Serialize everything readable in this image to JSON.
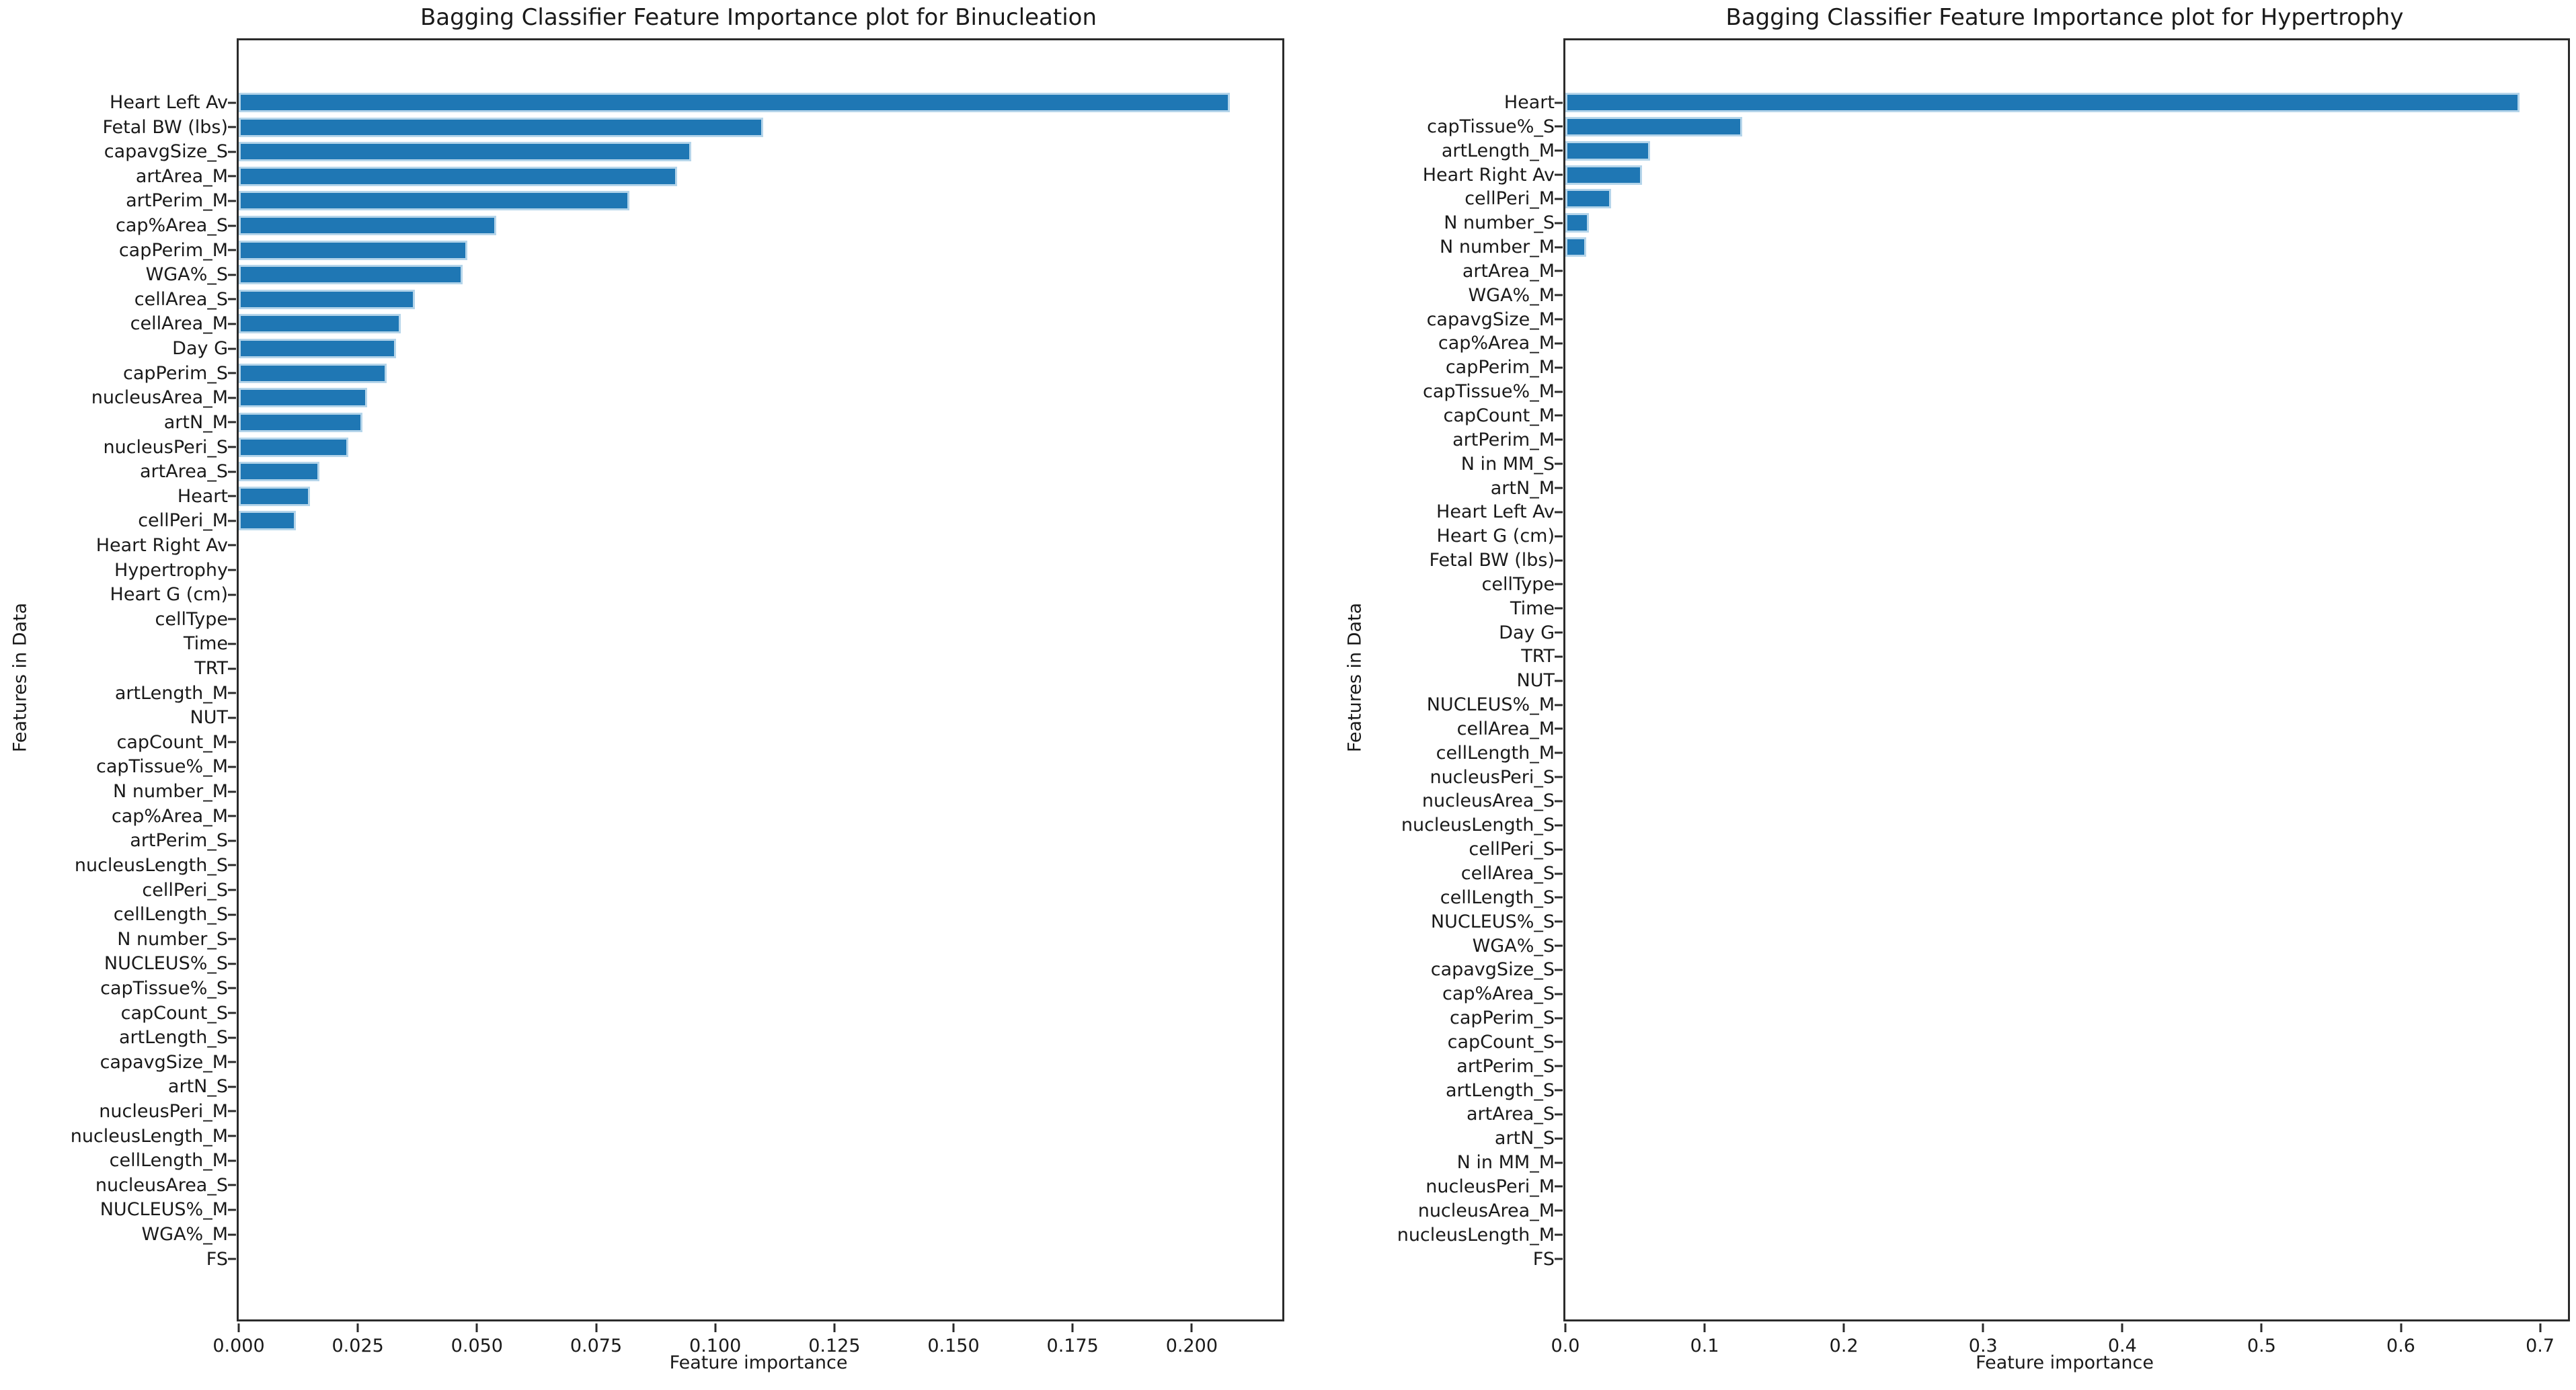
{
  "figure": {
    "background": "#ffffff",
    "colors": {
      "bar_fill": "#1f77b4",
      "bar_edge": "#b5d5ea",
      "spine": "#2b2b2b",
      "text": "#1a1a1a"
    }
  },
  "chart_data": [
    {
      "type": "bar",
      "orientation": "horizontal",
      "title": "Bagging Classifier Feature Importance plot for Binucleation",
      "xlabel": "Feature importance",
      "ylabel": "Features in Data",
      "xlim": [
        0,
        0.219
      ],
      "grid": false,
      "legend": null,
      "x_ticks": [
        "0.000",
        "0.025",
        "0.050",
        "0.075",
        "0.100",
        "0.125",
        "0.150",
        "0.175",
        "0.200"
      ],
      "x_tick_values": [
        0,
        0.025,
        0.05,
        0.075,
        0.1,
        0.125,
        0.15,
        0.175,
        0.2
      ],
      "categories": [
        "Heart Left Av",
        "Fetal BW (lbs)",
        "capavgSize_S",
        "artArea_M",
        "artPerim_M",
        "cap%Area_S",
        "capPerim_M",
        "WGA%_S",
        "cellArea_S",
        "cellArea_M",
        "Day G",
        "capPerim_S",
        "nucleusArea_M",
        "artN_M",
        "nucleusPeri_S",
        "artArea_S",
        "Heart",
        "cellPeri_M",
        "Heart Right Av",
        "Hypertrophy",
        "Heart G (cm)",
        "cellType",
        "Time",
        "TRT",
        "artLength_M",
        "NUT",
        "capCount_M",
        "capTissue%_M",
        "N number_M",
        "cap%Area_M",
        "artPerim_S",
        "nucleusLength_S",
        "cellPeri_S",
        "cellLength_S",
        "N number_S",
        "NUCLEUS%_S",
        "capTissue%_S",
        "capCount_S",
        "artLength_S",
        "capavgSize_M",
        "artN_S",
        "nucleusPeri_M",
        "nucleusLength_M",
        "cellLength_M",
        "nucleusArea_S",
        "NUCLEUS%_M",
        "WGA%_M",
        "FS"
      ],
      "values": [
        0.208,
        0.11,
        0.095,
        0.092,
        0.082,
        0.054,
        0.048,
        0.047,
        0.037,
        0.034,
        0.033,
        0.031,
        0.027,
        0.026,
        0.023,
        0.017,
        0.015,
        0.012,
        0,
        0,
        0,
        0,
        0,
        0,
        0,
        0,
        0,
        0,
        0,
        0,
        0,
        0,
        0,
        0,
        0,
        0,
        0,
        0,
        0,
        0,
        0,
        0,
        0,
        0,
        0,
        0,
        0,
        0
      ]
    },
    {
      "type": "bar",
      "orientation": "horizontal",
      "title": "Bagging Classifier Feature Importance plot for Hypertrophy",
      "xlabel": "Feature importance",
      "ylabel": "Features in Data",
      "xlim": [
        0,
        0.72
      ],
      "grid": false,
      "legend": null,
      "x_ticks": [
        "0.0",
        "0.1",
        "0.2",
        "0.3",
        "0.4",
        "0.5",
        "0.6",
        "0.7"
      ],
      "x_tick_values": [
        0,
        0.1,
        0.2,
        0.3,
        0.4,
        0.5,
        0.6,
        0.7
      ],
      "categories": [
        "Heart",
        "capTissue%_S",
        "artLength_M",
        "Heart Right Av",
        "cellPeri_M",
        "N number_S",
        "N number_M",
        "artArea_M",
        "WGA%_M",
        "capavgSize_M",
        "cap%Area_M",
        "capPerim_M",
        "capTissue%_M",
        "capCount_M",
        "artPerim_M",
        "N in MM_S",
        "artN_M",
        "Heart Left Av",
        "Heart G (cm)",
        "Fetal BW (lbs)",
        "cellType",
        "Time",
        "Day G",
        "TRT",
        "NUT",
        "NUCLEUS%_M",
        "cellArea_M",
        "cellLength_M",
        "nucleusPeri_S",
        "nucleusArea_S",
        "nucleusLength_S",
        "cellPeri_S",
        "cellArea_S",
        "cellLength_S",
        "NUCLEUS%_S",
        "WGA%_S",
        "capavgSize_S",
        "cap%Area_S",
        "capPerim_S",
        "capCount_S",
        "artPerim_S",
        "artLength_S",
        "artArea_S",
        "artN_S",
        "N in MM_M",
        "nucleusPeri_M",
        "nucleusArea_M",
        "nucleusLength_M",
        "FS"
      ],
      "values": [
        0.685,
        0.127,
        0.061,
        0.055,
        0.033,
        0.017,
        0.015,
        0,
        0,
        0,
        0,
        0,
        0,
        0,
        0,
        0,
        0,
        0,
        0,
        0,
        0,
        0,
        0,
        0,
        0,
        0,
        0,
        0,
        0,
        0,
        0,
        0,
        0,
        0,
        0,
        0,
        0,
        0,
        0,
        0,
        0,
        0,
        0,
        0,
        0,
        0,
        0,
        0,
        0
      ]
    }
  ]
}
